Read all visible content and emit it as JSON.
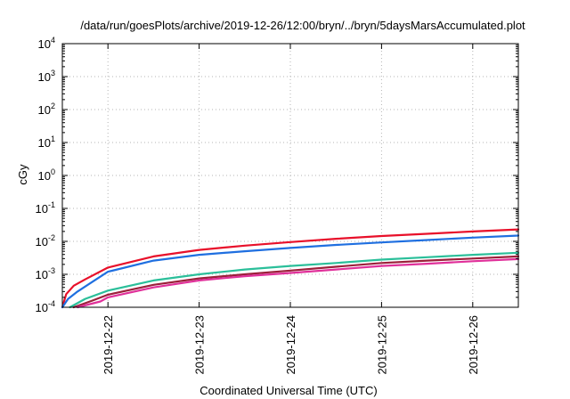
{
  "chart_data": {
    "type": "line",
    "title": "/data/run/goesPlots/archive/2019-12-26/12:00/bryn/../bryn/5daysMarsAccumulated.plot",
    "xlabel": "Coordinated Universal Time (UTC)",
    "ylabel": "cGy",
    "yscale": "log",
    "ylim": [
      0.0001,
      10000
    ],
    "xlim": [
      "2019-12-21 12:00",
      "2019-12-26 12:00"
    ],
    "grid": true,
    "y_ticks": [
      {
        "base": "10",
        "exp": "4",
        "value": 10000
      },
      {
        "base": "10",
        "exp": "3",
        "value": 1000
      },
      {
        "base": "10",
        "exp": "2",
        "value": 100
      },
      {
        "base": "10",
        "exp": "1",
        "value": 10
      },
      {
        "base": "10",
        "exp": "0",
        "value": 1
      },
      {
        "base": "10",
        "exp": "-1",
        "value": 0.1
      },
      {
        "base": "10",
        "exp": "-2",
        "value": 0.01
      },
      {
        "base": "10",
        "exp": "-3",
        "value": 0.001
      },
      {
        "base": "10",
        "exp": "-4",
        "value": 0.0001
      }
    ],
    "x_ticks": [
      "2019-12-22",
      "2019-12-23",
      "2019-12-24",
      "2019-12-25",
      "2019-12-26"
    ],
    "series": [
      {
        "color": "#e8102a",
        "points": [
          [
            "2019-12-21 12:00",
            0.0001
          ],
          [
            "2019-12-21 13:00",
            0.00025
          ],
          [
            "2019-12-21 15:00",
            0.00045
          ],
          [
            "2019-12-21 18:00",
            0.0007
          ],
          [
            "2019-12-22 00:00",
            0.0016
          ],
          [
            "2019-12-22 12:00",
            0.0035
          ],
          [
            "2019-12-23 00:00",
            0.0055
          ],
          [
            "2019-12-23 12:00",
            0.0074
          ],
          [
            "2019-12-24 00:00",
            0.0095
          ],
          [
            "2019-12-24 12:00",
            0.012
          ],
          [
            "2019-12-25 00:00",
            0.0145
          ],
          [
            "2019-12-25 12:00",
            0.017
          ],
          [
            "2019-12-26 00:00",
            0.02
          ],
          [
            "2019-12-26 12:00",
            0.023
          ]
        ]
      },
      {
        "color": "#1f6fe0",
        "points": [
          [
            "2019-12-21 12:00",
            0.0001
          ],
          [
            "2019-12-21 13:30",
            0.00018
          ],
          [
            "2019-12-21 16:00",
            0.0003
          ],
          [
            "2019-12-21 20:00",
            0.0006
          ],
          [
            "2019-12-22 00:00",
            0.0012
          ],
          [
            "2019-12-22 12:00",
            0.0026
          ],
          [
            "2019-12-23 00:00",
            0.0039
          ],
          [
            "2019-12-23 12:00",
            0.005
          ],
          [
            "2019-12-24 00:00",
            0.0063
          ],
          [
            "2019-12-24 12:00",
            0.0078
          ],
          [
            "2019-12-25 00:00",
            0.0093
          ],
          [
            "2019-12-25 12:00",
            0.011
          ],
          [
            "2019-12-26 00:00",
            0.013
          ],
          [
            "2019-12-26 12:00",
            0.015
          ]
        ]
      },
      {
        "color": "#2bbf9a",
        "points": [
          [
            "2019-12-21 14:00",
            0.0001
          ],
          [
            "2019-12-21 18:00",
            0.00018
          ],
          [
            "2019-12-22 00:00",
            0.00032
          ],
          [
            "2019-12-22 12:00",
            0.00065
          ],
          [
            "2019-12-23 00:00",
            0.001
          ],
          [
            "2019-12-23 12:00",
            0.0014
          ],
          [
            "2019-12-24 00:00",
            0.0018
          ],
          [
            "2019-12-24 12:00",
            0.0022
          ],
          [
            "2019-12-25 00:00",
            0.0028
          ],
          [
            "2019-12-25 12:00",
            0.0033
          ],
          [
            "2019-12-26 00:00",
            0.0039
          ],
          [
            "2019-12-26 12:00",
            0.0045
          ]
        ]
      },
      {
        "color": "#9c1f3a",
        "points": [
          [
            "2019-12-21 15:00",
            0.0001
          ],
          [
            "2019-12-21 20:00",
            0.00016
          ],
          [
            "2019-12-22 00:00",
            0.00024
          ],
          [
            "2019-12-22 12:00",
            0.00048
          ],
          [
            "2019-12-23 00:00",
            0.00075
          ],
          [
            "2019-12-23 12:00",
            0.001
          ],
          [
            "2019-12-24 00:00",
            0.0013
          ],
          [
            "2019-12-24 12:00",
            0.0017
          ],
          [
            "2019-12-25 00:00",
            0.0022
          ],
          [
            "2019-12-25 12:00",
            0.0026
          ],
          [
            "2019-12-26 00:00",
            0.003
          ],
          [
            "2019-12-26 12:00",
            0.0035
          ]
        ]
      },
      {
        "color": "#e0309a",
        "points": [
          [
            "2019-12-21 16:00",
            0.0001
          ],
          [
            "2019-12-21 22:00",
            0.00015
          ],
          [
            "2019-12-22 00:00",
            0.0002
          ],
          [
            "2019-12-22 12:00",
            0.0004
          ],
          [
            "2019-12-23 00:00",
            0.00065
          ],
          [
            "2019-12-23 12:00",
            0.00088
          ],
          [
            "2019-12-24 00:00",
            0.0011
          ],
          [
            "2019-12-24 12:00",
            0.0014
          ],
          [
            "2019-12-25 00:00",
            0.0018
          ],
          [
            "2019-12-25 12:00",
            0.0021
          ],
          [
            "2019-12-26 00:00",
            0.0025
          ],
          [
            "2019-12-26 12:00",
            0.0029
          ]
        ]
      }
    ]
  }
}
